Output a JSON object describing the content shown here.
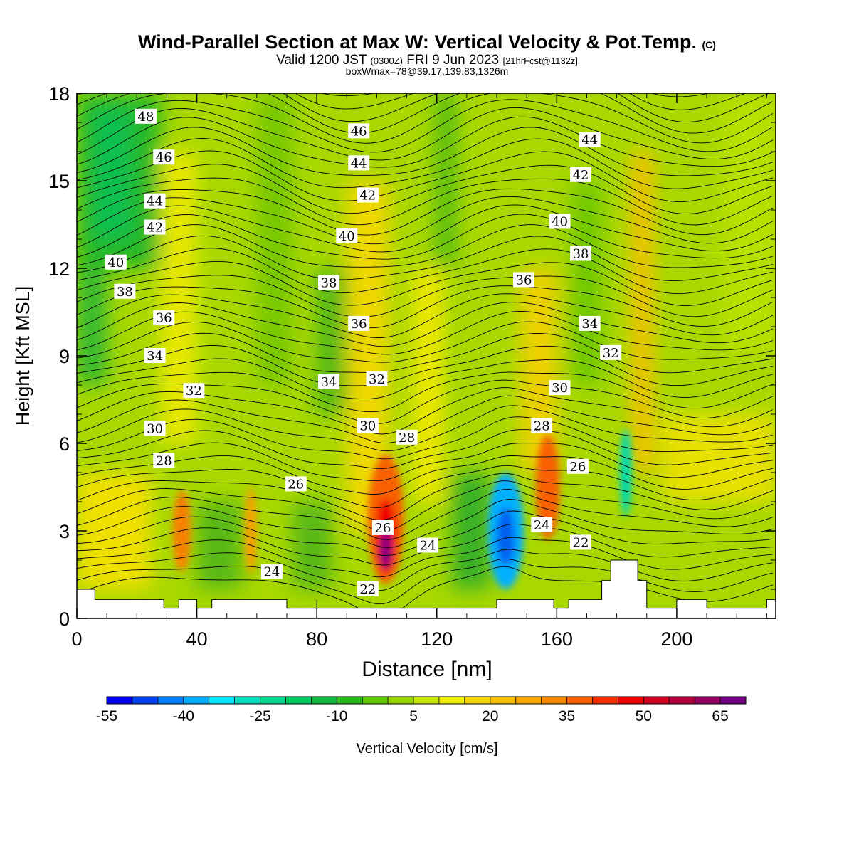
{
  "title": {
    "main": "Wind-Parallel Section at Max W: Vertical Velocity & Pot.Temp.",
    "copyright": "(C)",
    "valid_prefix": "Valid 1200 JST",
    "valid_utc": "(0300Z)",
    "valid_date": "FRI 9 Jun 2023",
    "forecast": "[21hrFcst@1132z]",
    "box_info": "boxWmax=78@39.17,139.83,1326m"
  },
  "chart_data": {
    "type": "heatmap",
    "xlabel": "Distance [nm]",
    "ylabel": "Height [Kft MSL]",
    "xlim": [
      0,
      233
    ],
    "ylim": [
      0,
      18
    ],
    "x_ticks": [
      0,
      40,
      80,
      120,
      160,
      200
    ],
    "y_ticks": [
      0,
      3,
      6,
      9,
      12,
      15,
      18
    ],
    "colorbar": {
      "label": "Vertical Velocity [cm/s]",
      "min": -55,
      "max": 70,
      "step": 5,
      "tick_labels": [
        -55,
        -40,
        -25,
        -10,
        5,
        20,
        35,
        50,
        65
      ],
      "colors": [
        "#0000f0",
        "#0040f0",
        "#0080ff",
        "#00b0ff",
        "#00e8ff",
        "#00e0c0",
        "#00d890",
        "#00c860",
        "#10b840",
        "#28b818",
        "#60c800",
        "#98d800",
        "#c8e800",
        "#f0f000",
        "#f8d800",
        "#f8c000",
        "#f8a800",
        "#f88800",
        "#f86000",
        "#f83000",
        "#f00000",
        "#d00020",
        "#b00040",
        "#900060",
        "#700080"
      ]
    },
    "w_features": [
      {
        "x": 103,
        "y": 2.6,
        "value": 78,
        "sign": "positive"
      },
      {
        "x": 143,
        "y": 2.8,
        "value": -52,
        "sign": "negative"
      },
      {
        "x": 35,
        "y": 3.0,
        "value": 32,
        "sign": "positive"
      },
      {
        "x": 157,
        "y": 4.5,
        "value": 40,
        "sign": "positive"
      },
      {
        "x": 183,
        "y": 5.0,
        "value": -30,
        "sign": "negative"
      }
    ],
    "theta_label_values": [
      22,
      24,
      26,
      28,
      30,
      32,
      34,
      36,
      38,
      40,
      42,
      44,
      46,
      48
    ],
    "contour_labels": [
      {
        "text": "48",
        "x": 23,
        "y": 17.2
      },
      {
        "text": "46",
        "x": 29,
        "y": 15.8
      },
      {
        "text": "44",
        "x": 26,
        "y": 14.3
      },
      {
        "text": "42",
        "x": 26,
        "y": 13.4
      },
      {
        "text": "40",
        "x": 13,
        "y": 12.2
      },
      {
        "text": "38",
        "x": 16,
        "y": 11.2
      },
      {
        "text": "36",
        "x": 29,
        "y": 10.3
      },
      {
        "text": "34",
        "x": 26,
        "y": 9.0
      },
      {
        "text": "32",
        "x": 39,
        "y": 7.8
      },
      {
        "text": "30",
        "x": 26,
        "y": 6.5
      },
      {
        "text": "28",
        "x": 29,
        "y": 5.4
      },
      {
        "text": "26",
        "x": 73,
        "y": 4.6
      },
      {
        "text": "24",
        "x": 65,
        "y": 1.6
      },
      {
        "text": "46",
        "x": 94,
        "y": 16.7
      },
      {
        "text": "44",
        "x": 94,
        "y": 15.6
      },
      {
        "text": "42",
        "x": 97,
        "y": 14.5
      },
      {
        "text": "40",
        "x": 90,
        "y": 13.1
      },
      {
        "text": "38",
        "x": 84,
        "y": 11.5
      },
      {
        "text": "36",
        "x": 94,
        "y": 10.1
      },
      {
        "text": "34",
        "x": 84,
        "y": 8.1
      },
      {
        "text": "32",
        "x": 100,
        "y": 8.2
      },
      {
        "text": "30",
        "x": 97,
        "y": 6.6
      },
      {
        "text": "28",
        "x": 110,
        "y": 6.2
      },
      {
        "text": "26",
        "x": 102,
        "y": 3.1
      },
      {
        "text": "24",
        "x": 117,
        "y": 2.5
      },
      {
        "text": "22",
        "x": 97,
        "y": 1.0
      },
      {
        "text": "44",
        "x": 171,
        "y": 16.4
      },
      {
        "text": "42",
        "x": 168,
        "y": 15.2
      },
      {
        "text": "40",
        "x": 161,
        "y": 13.6
      },
      {
        "text": "38",
        "x": 168,
        "y": 12.5
      },
      {
        "text": "36",
        "x": 149,
        "y": 11.6
      },
      {
        "text": "34",
        "x": 171,
        "y": 10.1
      },
      {
        "text": "32",
        "x": 178,
        "y": 9.1
      },
      {
        "text": "30",
        "x": 161,
        "y": 7.9
      },
      {
        "text": "28",
        "x": 155,
        "y": 6.6
      },
      {
        "text": "26",
        "x": 167,
        "y": 5.2
      },
      {
        "text": "24",
        "x": 155,
        "y": 3.2
      },
      {
        "text": "22",
        "x": 168,
        "y": 2.6
      }
    ],
    "terrain_kft": [
      [
        0,
        1.0
      ],
      [
        6,
        1.0
      ],
      [
        6,
        0.65
      ],
      [
        29,
        0.65
      ],
      [
        29,
        0.35
      ],
      [
        34,
        0.35
      ],
      [
        34,
        0.65
      ],
      [
        40,
        0.65
      ],
      [
        40,
        0.35
      ],
      [
        45,
        0.35
      ],
      [
        45,
        0.65
      ],
      [
        70,
        0.65
      ],
      [
        70,
        0.35
      ],
      [
        80,
        0.35
      ],
      [
        80,
        0.65
      ],
      [
        80,
        0.35
      ],
      [
        140,
        0.35
      ],
      [
        140,
        0.65
      ],
      [
        159,
        0.65
      ],
      [
        159,
        0.35
      ],
      [
        164,
        0.35
      ],
      [
        164,
        0.65
      ],
      [
        175,
        0.65
      ],
      [
        175,
        1.3
      ],
      [
        178,
        1.3
      ],
      [
        178,
        2.0
      ],
      [
        187,
        2.0
      ],
      [
        187,
        1.3
      ],
      [
        190,
        1.3
      ],
      [
        190,
        0.35
      ],
      [
        200,
        0.35
      ],
      [
        200,
        0.65
      ],
      [
        210,
        0.65
      ],
      [
        210,
        0.35
      ],
      [
        230,
        0.35
      ],
      [
        230,
        0.65
      ],
      [
        233,
        0.65
      ]
    ]
  }
}
